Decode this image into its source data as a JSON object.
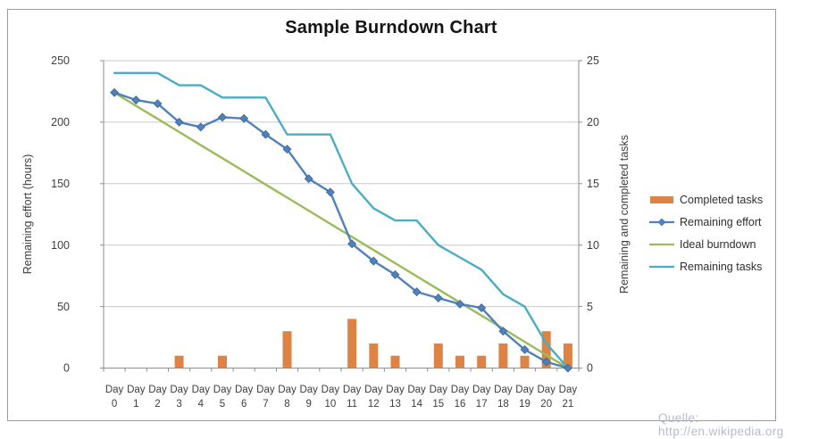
{
  "watermark": "Quelle: http://en.wikipedia.org",
  "colors": {
    "background": "#FFFFFF",
    "frame": "#9B9B9B",
    "grid": "#C9C9C9",
    "axis": "#8E8E8E",
    "tick_text": "#3D3D3D",
    "title_text": "#141414",
    "watermark_text": "#B7BBCF"
  },
  "chart_data": {
    "type": "combo_bar_line",
    "title": "Sample Burndown Chart",
    "grid": true,
    "legend_position": "right",
    "categories": [
      "Day 0",
      "Day 1",
      "Day 2",
      "Day 3",
      "Day 4",
      "Day 5",
      "Day 6",
      "Day 7",
      "Day 8",
      "Day 9",
      "Day 10",
      "Day 11",
      "Day 12",
      "Day 13",
      "Day 14",
      "Day 15",
      "Day 16",
      "Day 17",
      "Day 18",
      "Day 19",
      "Day 20",
      "Day 21"
    ],
    "left_axis": {
      "title": "Remaining effort (hours)",
      "min": 0,
      "max": 250,
      "ticks": [
        0,
        50,
        100,
        150,
        200,
        250
      ]
    },
    "right_axis": {
      "title": "Remaining and  completed tasks",
      "min": 0,
      "max": 25,
      "ticks": [
        0,
        5,
        10,
        15,
        20,
        25
      ]
    },
    "series": [
      {
        "name": "Completed tasks",
        "type": "bar",
        "axis": "right",
        "color": "#DF8344",
        "values": [
          0,
          0,
          0,
          1,
          0,
          1,
          0,
          0,
          3,
          0,
          0,
          4,
          2,
          1,
          0,
          2,
          1,
          1,
          2,
          1,
          3,
          2
        ]
      },
      {
        "name": "Remaining effort",
        "type": "line",
        "marker": "diamond",
        "axis": "left",
        "color": "#4F81BD",
        "values": [
          224,
          218,
          215,
          200,
          196,
          204,
          203,
          190,
          178,
          154,
          143,
          101,
          87,
          76,
          62,
          57,
          52,
          49,
          30,
          15,
          5,
          0
        ]
      },
      {
        "name": "Ideal burndown",
        "type": "line",
        "axis": "left",
        "color": "#9BBB59",
        "values": [
          224,
          213.3,
          202.7,
          192,
          181.3,
          170.7,
          160,
          149.3,
          138.7,
          128,
          117.3,
          106.7,
          96,
          85.3,
          74.7,
          64,
          53.3,
          42.7,
          32,
          21.3,
          10.7,
          0
        ]
      },
      {
        "name": "Remaining tasks",
        "type": "line",
        "axis": "right",
        "color": "#4BACC6",
        "values": [
          24,
          24,
          24,
          23,
          23,
          22,
          22,
          22,
          19,
          19,
          19,
          15,
          13,
          12,
          12,
          10,
          9,
          8,
          6,
          5,
          2,
          0
        ]
      }
    ]
  }
}
